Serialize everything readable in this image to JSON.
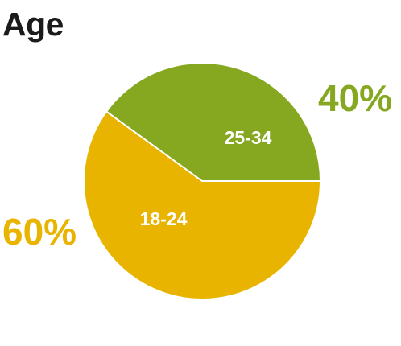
{
  "chart_data": {
    "type": "pie",
    "title": "Age",
    "slices": [
      {
        "label": "25-34",
        "value": 40,
        "percent_label": "40%",
        "color": "#86a820"
      },
      {
        "label": "18-24",
        "value": 60,
        "percent_label": "60%",
        "color": "#e8b400"
      }
    ]
  }
}
